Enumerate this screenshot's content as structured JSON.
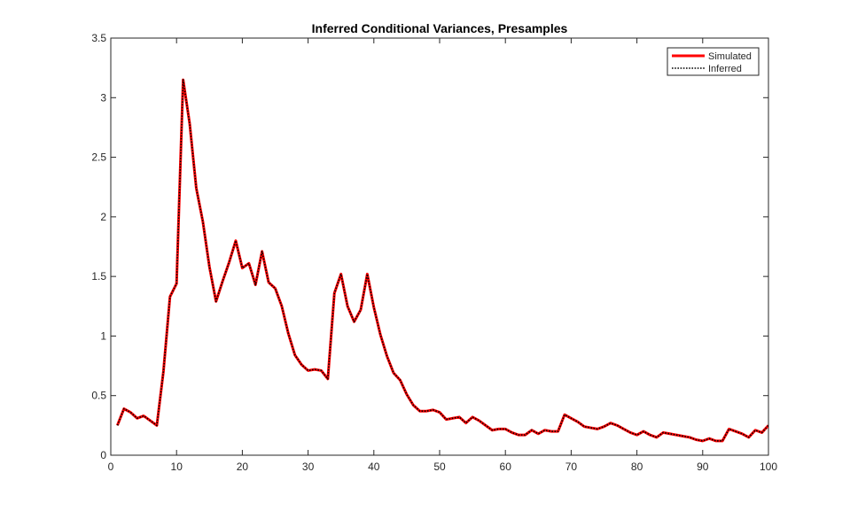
{
  "chart_data": {
    "type": "line",
    "title": "Inferred Conditional Variances, Presamples",
    "xlabel": "",
    "ylabel": "",
    "xlim": [
      0,
      100
    ],
    "ylim": [
      0,
      3.5
    ],
    "xticks": [
      0,
      10,
      20,
      30,
      40,
      50,
      60,
      70,
      80,
      90,
      100
    ],
    "yticks": [
      0,
      0.5,
      1,
      1.5,
      2,
      2.5,
      3,
      3.5
    ],
    "xtick_labels": [
      "0",
      "10",
      "20",
      "30",
      "40",
      "50",
      "60",
      "70",
      "80",
      "90",
      "100"
    ],
    "ytick_labels": [
      "0",
      "0.5",
      "1",
      "1.5",
      "2",
      "2.5",
      "3",
      "3.5"
    ],
    "grid": false,
    "legend_position": "top-right",
    "x": [
      1,
      2,
      3,
      4,
      5,
      6,
      7,
      8,
      9,
      10,
      11,
      12,
      13,
      14,
      15,
      16,
      17,
      18,
      19,
      20,
      21,
      22,
      23,
      24,
      25,
      26,
      27,
      28,
      29,
      30,
      31,
      32,
      33,
      34,
      35,
      36,
      37,
      38,
      39,
      40,
      41,
      42,
      43,
      44,
      45,
      46,
      47,
      48,
      49,
      50,
      51,
      52,
      53,
      54,
      55,
      56,
      57,
      58,
      59,
      60,
      61,
      62,
      63,
      64,
      65,
      66,
      67,
      68,
      69,
      70,
      71,
      72,
      73,
      74,
      75,
      76,
      77,
      78,
      79,
      80,
      81,
      82,
      83,
      84,
      85,
      86,
      87,
      88,
      89,
      90,
      91,
      92,
      93,
      94,
      95,
      96,
      97,
      98,
      99,
      100
    ],
    "series": [
      {
        "name": "Simulated",
        "color": "#ff0000",
        "style": "solid",
        "values": [
          0.25,
          0.39,
          0.36,
          0.31,
          0.33,
          0.29,
          0.25,
          0.7,
          1.33,
          1.44,
          3.15,
          2.78,
          2.24,
          1.96,
          1.58,
          1.29,
          1.46,
          1.62,
          1.8,
          1.57,
          1.61,
          1.43,
          1.71,
          1.45,
          1.4,
          1.25,
          1.02,
          0.84,
          0.76,
          0.71,
          0.72,
          0.71,
          0.64,
          1.36,
          1.52,
          1.25,
          1.12,
          1.22,
          1.52,
          1.24,
          1.01,
          0.83,
          0.69,
          0.63,
          0.51,
          0.42,
          0.37,
          0.37,
          0.38,
          0.36,
          0.3,
          0.31,
          0.32,
          0.27,
          0.32,
          0.29,
          0.25,
          0.21,
          0.22,
          0.22,
          0.19,
          0.17,
          0.17,
          0.21,
          0.18,
          0.21,
          0.2,
          0.2,
          0.34,
          0.31,
          0.28,
          0.24,
          0.23,
          0.22,
          0.24,
          0.27,
          0.25,
          0.22,
          0.19,
          0.17,
          0.2,
          0.17,
          0.15,
          0.19,
          0.18,
          0.17,
          0.16,
          0.15,
          0.13,
          0.12,
          0.14,
          0.12,
          0.12,
          0.22,
          0.2,
          0.18,
          0.15,
          0.21,
          0.19,
          0.25
        ]
      },
      {
        "name": "Inferred",
        "color": "#000000",
        "style": "dotted",
        "values": [
          0.25,
          0.39,
          0.36,
          0.31,
          0.33,
          0.29,
          0.25,
          0.7,
          1.33,
          1.44,
          3.15,
          2.78,
          2.24,
          1.96,
          1.58,
          1.29,
          1.46,
          1.62,
          1.8,
          1.57,
          1.61,
          1.43,
          1.71,
          1.45,
          1.4,
          1.25,
          1.02,
          0.84,
          0.76,
          0.71,
          0.72,
          0.71,
          0.64,
          1.36,
          1.52,
          1.25,
          1.12,
          1.22,
          1.52,
          1.24,
          1.01,
          0.83,
          0.69,
          0.63,
          0.51,
          0.42,
          0.37,
          0.37,
          0.38,
          0.36,
          0.3,
          0.31,
          0.32,
          0.27,
          0.32,
          0.29,
          0.25,
          0.21,
          0.22,
          0.22,
          0.19,
          0.17,
          0.17,
          0.21,
          0.18,
          0.21,
          0.2,
          0.2,
          0.34,
          0.31,
          0.28,
          0.24,
          0.23,
          0.22,
          0.24,
          0.27,
          0.25,
          0.22,
          0.19,
          0.17,
          0.2,
          0.17,
          0.15,
          0.19,
          0.18,
          0.17,
          0.16,
          0.15,
          0.13,
          0.12,
          0.14,
          0.12,
          0.12,
          0.22,
          0.2,
          0.18,
          0.15,
          0.21,
          0.19,
          0.25
        ]
      }
    ]
  }
}
